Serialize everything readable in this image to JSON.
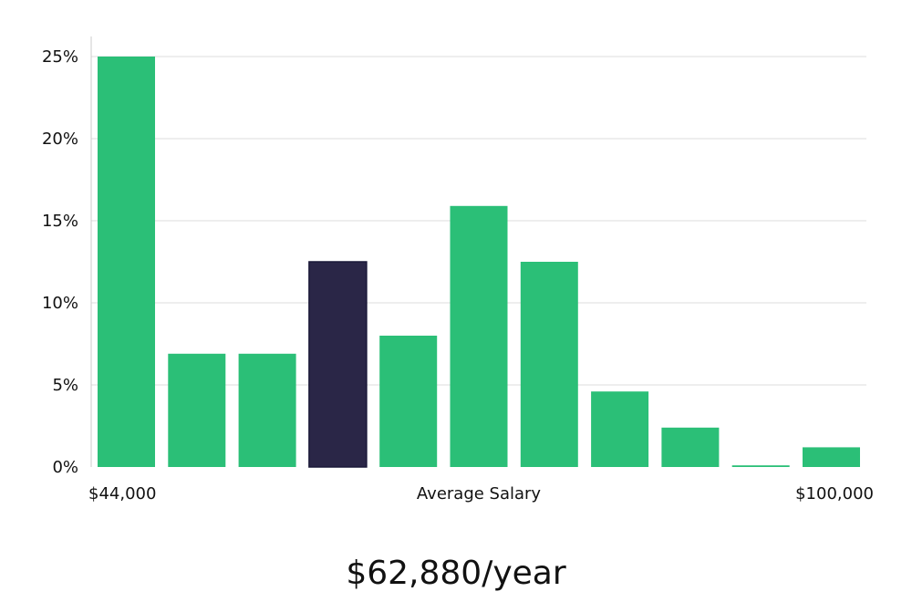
{
  "chart_data": {
    "type": "bar",
    "title": "",
    "ylabel": "",
    "xlabel": "Average Salary",
    "x_start_label": "$44,000",
    "x_end_label": "$100,000",
    "values": [
      25,
      6.9,
      6.9,
      12.5,
      8.0,
      15.9,
      12.5,
      4.6,
      2.4,
      0.1,
      1.2
    ],
    "highlight_index": 3,
    "ylim": [
      0,
      25
    ],
    "yticks": [
      0,
      5,
      10,
      15,
      20,
      25
    ],
    "ytick_labels": [
      "0%",
      "5%",
      "10%",
      "15%",
      "20%",
      "25%"
    ],
    "grid": true,
    "legend": "none",
    "colors": {
      "bar": "#2bbf77",
      "highlight": "#2a2647",
      "grid": "#dddddd",
      "axis": "#cccccc"
    }
  },
  "summary": {
    "salary_text": "$62,880/year"
  }
}
